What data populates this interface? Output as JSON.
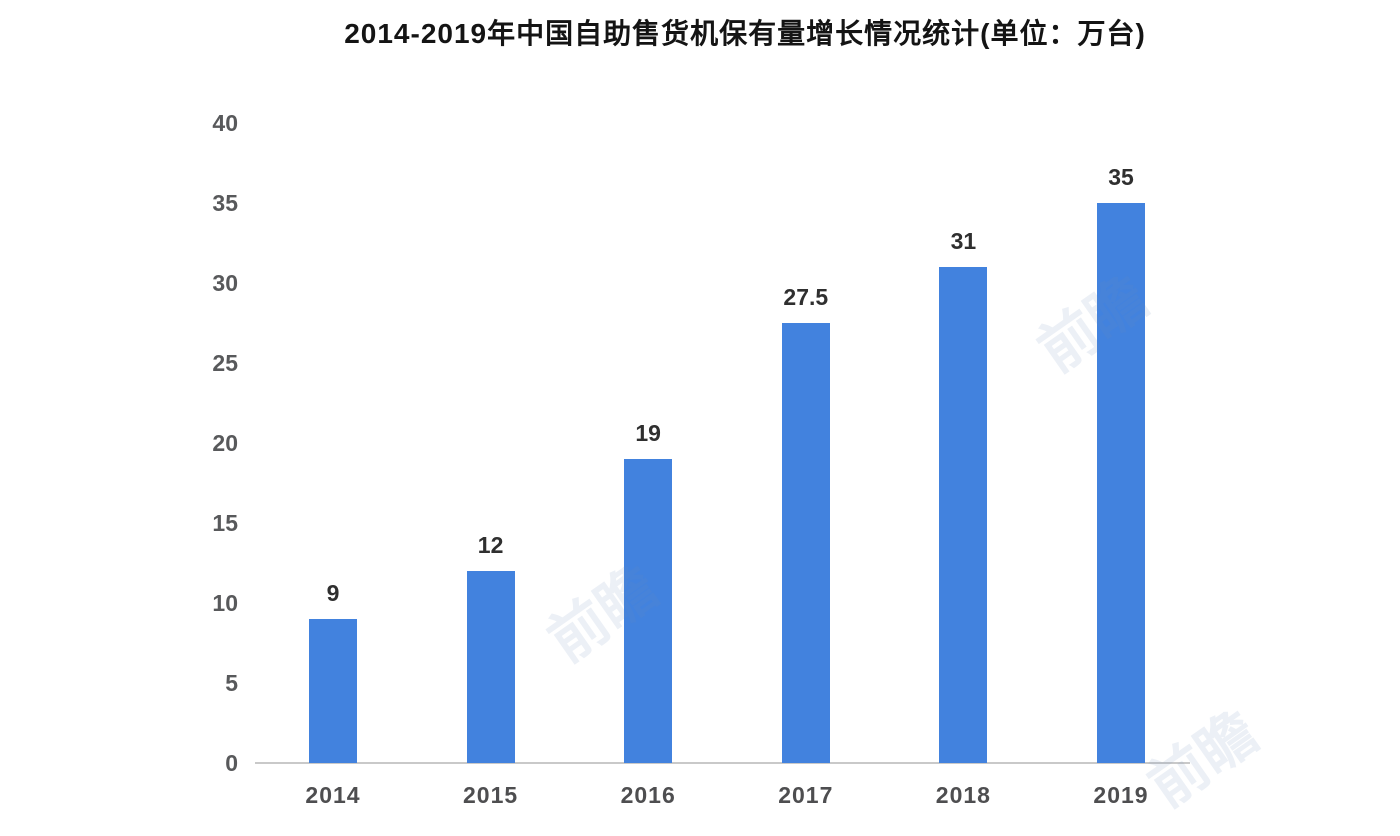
{
  "chart_data": {
    "type": "bar",
    "title": "2014-2019年中国自助售货机保有量增长情况统计(单位：万台)",
    "categories": [
      "2014",
      "2015",
      "2016",
      "2017",
      "2018",
      "2019"
    ],
    "values": [
      9,
      12,
      19,
      27.5,
      31,
      35
    ],
    "value_labels": [
      "9",
      "12",
      "19",
      "27.5",
      "31",
      "35"
    ],
    "unit": "万台",
    "xlabel": "",
    "ylabel": "",
    "ylim": [
      0,
      40
    ],
    "yticks": [
      0,
      5,
      10,
      15,
      20,
      25,
      30,
      35,
      40
    ],
    "grid": false,
    "legend": null,
    "bar_color": "#4282DE",
    "axis_line_color": "#c9c9c9",
    "text_color": "#58595b"
  },
  "watermark": {
    "text": "前瞻"
  }
}
